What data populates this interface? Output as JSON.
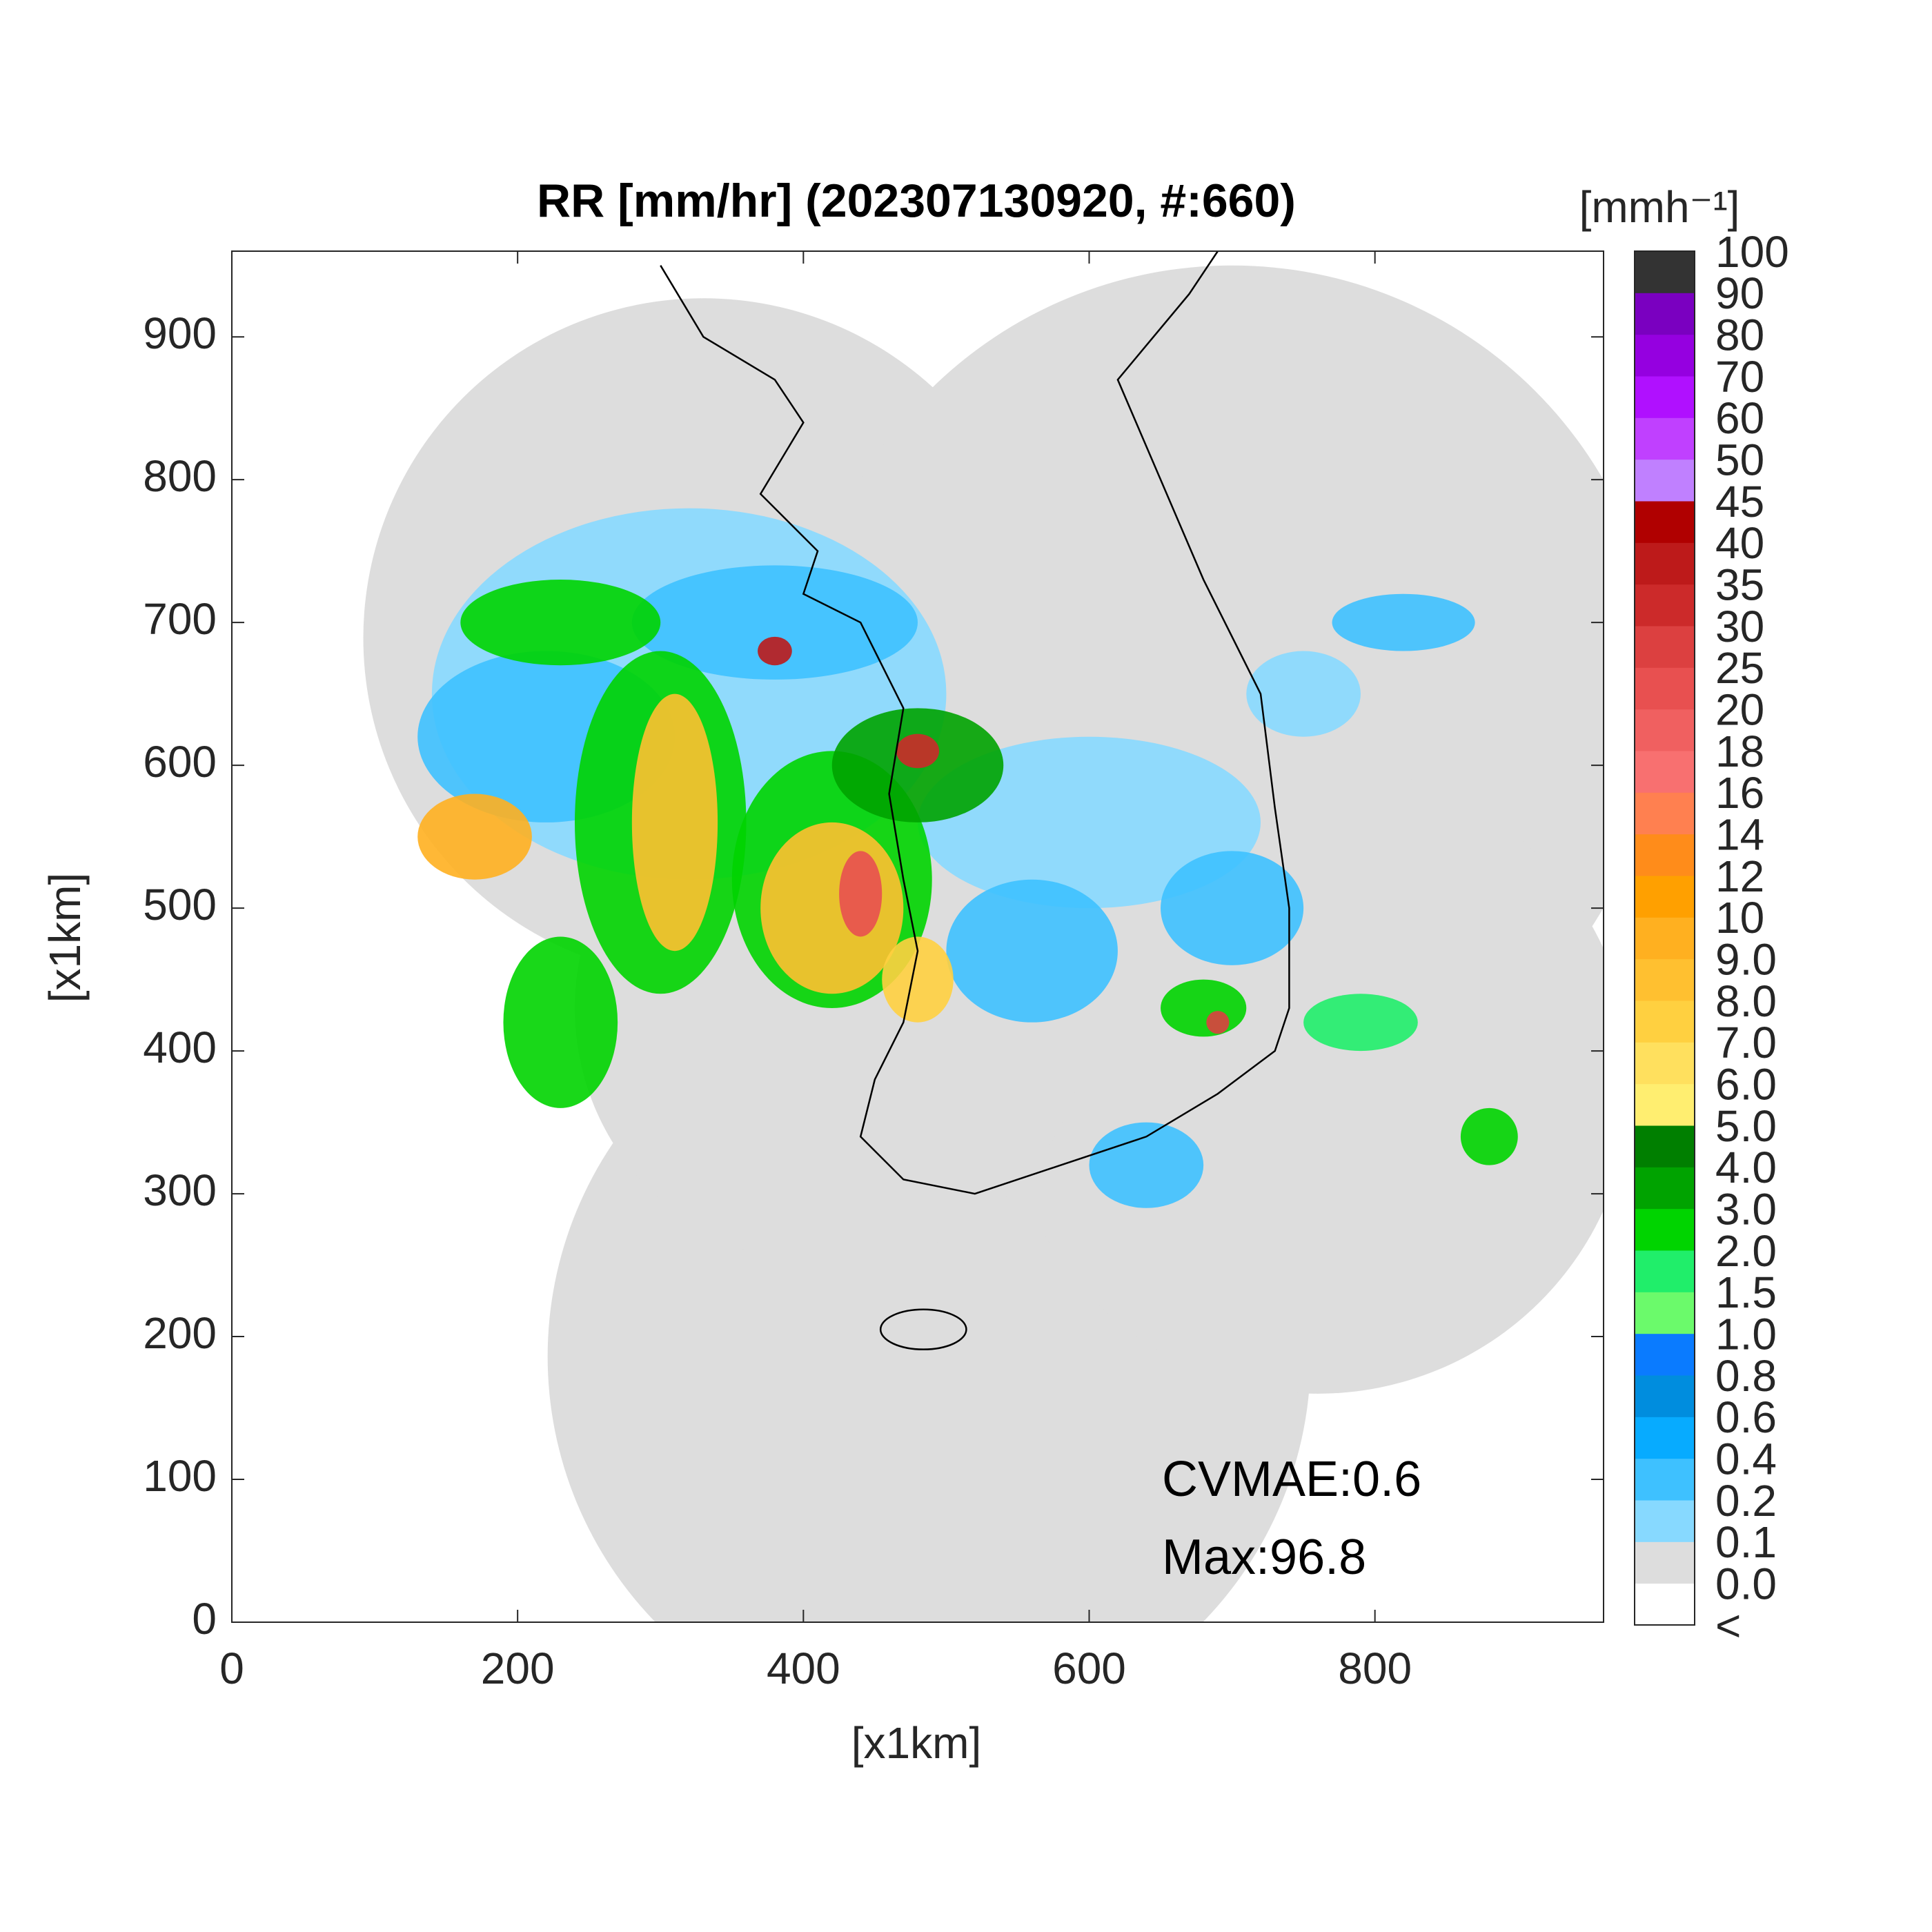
{
  "chart_data": {
    "type": "map",
    "title": "RR [mm/hr] (202307130920, #:660)",
    "xlabel": "[x1km]",
    "ylabel": "[x1km]",
    "xlim": [
      0,
      960
    ],
    "ylim": [
      0,
      960
    ],
    "xticks": [
      0,
      200,
      400,
      600,
      800
    ],
    "yticks": [
      0,
      100,
      200,
      300,
      400,
      500,
      600,
      700,
      800,
      900
    ],
    "annotations": [
      "CVMAE:0.6",
      "Max:96.8"
    ],
    "colorbar": {
      "title": "[mmh⁻¹]",
      "labels": [
        "<",
        "0.0",
        "0.1",
        "0.2",
        "0.4",
        "0.6",
        "0.8",
        "1.0",
        "1.5",
        "2.0",
        "3.0",
        "4.0",
        "5.0",
        "6.0",
        "7.0",
        "8.0",
        "9.0",
        "10",
        "12",
        "14",
        "16",
        "18",
        "20",
        "25",
        "30",
        "35",
        "40",
        "45",
        "50",
        "60",
        "70",
        "80",
        "90",
        "100"
      ],
      "colors": [
        "#ffffff",
        "#dddddd",
        "#87d9ff",
        "#3ec1ff",
        "#07abff",
        "#008dde",
        "#0a7bff",
        "#6bfa6b",
        "#20ee6a",
        "#00d400",
        "#00a300",
        "#007f00",
        "#ffee70",
        "#ffe05e",
        "#ffd040",
        "#ffc030",
        "#ffb020",
        "#ffa000",
        "#ff8c1a",
        "#ff8050",
        "#f87070",
        "#f06060",
        "#e85050",
        "#dc4040",
        "#cc2a2a",
        "#bd1a1a",
        "#b00000",
        "#c080ff",
        "#c040ff",
        "#b010ff",
        "#9500e0",
        "#7a00c0",
        "#333333"
      ]
    }
  }
}
